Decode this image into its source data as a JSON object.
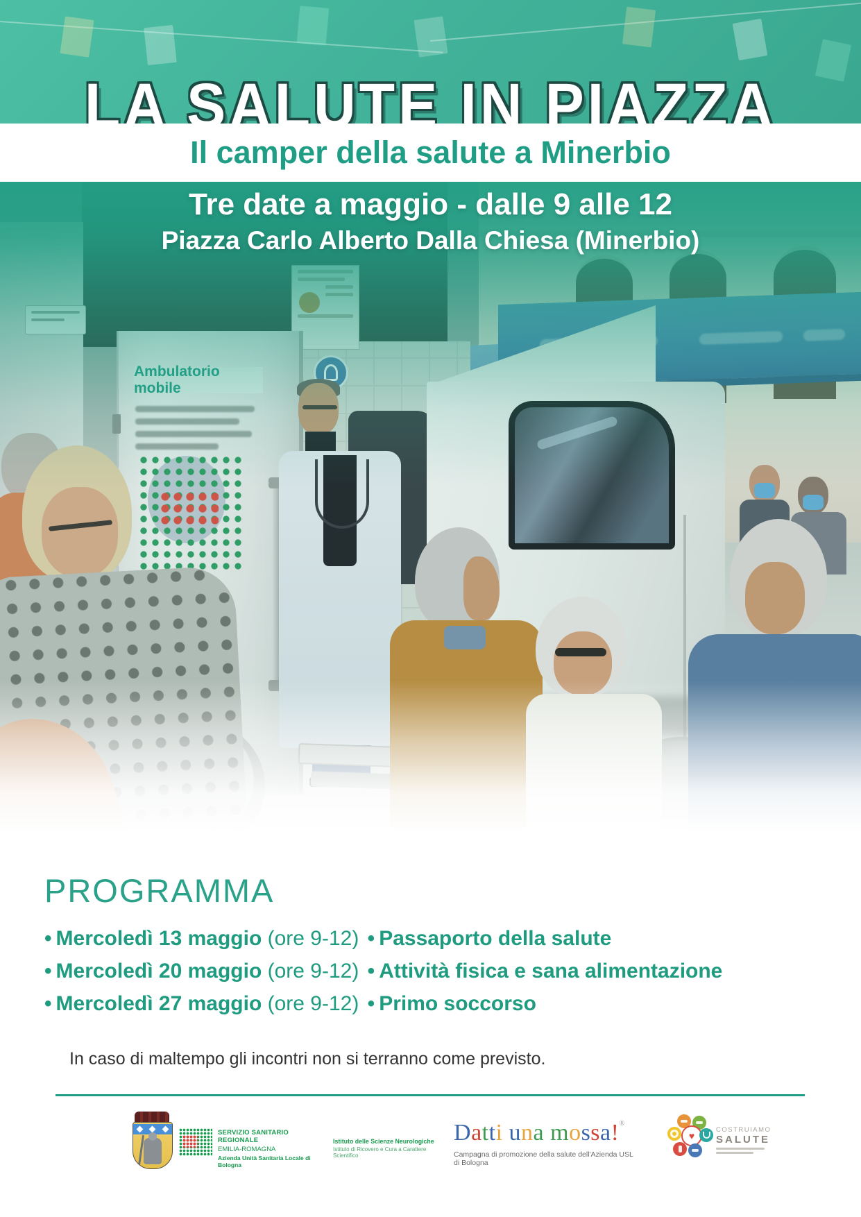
{
  "poster": {
    "title": "LA SALUTE IN PIAZZA",
    "subtitle": "Il camper della salute a Minerbio",
    "banner": {
      "line1": "Tre date a maggio - dalle 9 alle 12",
      "line2": "Piazza Carlo Alberto Dalla Chiesa (Minerbio)"
    },
    "van_sign": "Ambulatorio mobile",
    "program": {
      "heading": "PROGRAMMA",
      "bullet_glyph": "•",
      "items": [
        {
          "date": "Mercoledì 13 maggio",
          "time": "(ore 9-12)",
          "activity": "Passaporto della salute"
        },
        {
          "date": "Mercoledì 20 maggio",
          "time": "(ore 9-12)",
          "activity": "Attività fisica e sana alimentazione"
        },
        {
          "date": "Mercoledì 27 maggio",
          "time": "(ore 9-12)",
          "activity": "Primo soccorso"
        }
      ]
    },
    "note": "In caso di maltempo gli incontri non si terranno come previsto.",
    "footer": {
      "ssr": {
        "line1": "SERVIZIO SANITARIO REGIONALE",
        "line2": "EMILIA-ROMAGNA",
        "line3": "Azienda Unità Sanitaria Locale di Bologna"
      },
      "istituto": {
        "line1": "Istituto delle Scienze Neurologiche",
        "line2": "Istituto di Ricovero e Cura a Carattere Scientifico"
      },
      "datti": {
        "letters": [
          [
            "D",
            "#3a66ad"
          ],
          [
            "a",
            "#cf4337"
          ],
          [
            "t",
            "#3d9b4f"
          ],
          [
            "t",
            "#3a66ad"
          ],
          [
            "i",
            "#e8a33d"
          ],
          [
            " ",
            ""
          ],
          [
            "u",
            "#3a66ad"
          ],
          [
            "n",
            "#e8a33d"
          ],
          [
            "a",
            "#3d9b4f"
          ],
          [
            " ",
            ""
          ],
          [
            "m",
            "#3d9b4f"
          ],
          [
            "o",
            "#e8a33d"
          ],
          [
            "s",
            "#3a66ad"
          ],
          [
            "s",
            "#cf4337"
          ],
          [
            "a",
            "#3a66ad"
          ],
          [
            "!",
            "#cf4337"
          ]
        ],
        "mark": "®",
        "subtitle": "Campagna di promozione della salute dell'Azienda USL di Bologna"
      },
      "costruiamo": {
        "line1": "COSTRUIAMO",
        "line2": "SALUTE"
      }
    },
    "colors": {
      "teal_header": "#45b89d",
      "teal_text": "#1f9e85",
      "title_outline": "#1c4a43",
      "ssr_green": "#169a4e",
      "note_text": "#333333",
      "datti_palette": [
        "#3a66ad",
        "#cf4337",
        "#3d9b4f",
        "#e8a33d"
      ]
    }
  }
}
